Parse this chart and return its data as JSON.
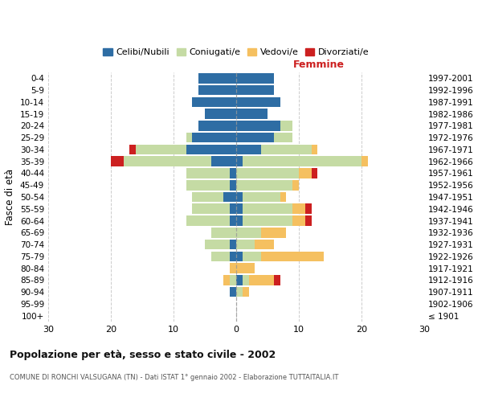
{
  "age_groups": [
    "100+",
    "95-99",
    "90-94",
    "85-89",
    "80-84",
    "75-79",
    "70-74",
    "65-69",
    "60-64",
    "55-59",
    "50-54",
    "45-49",
    "40-44",
    "35-39",
    "30-34",
    "25-29",
    "20-24",
    "15-19",
    "10-14",
    "5-9",
    "0-4"
  ],
  "birth_years": [
    "≤ 1901",
    "1902-1906",
    "1907-1911",
    "1912-1916",
    "1917-1921",
    "1922-1926",
    "1927-1931",
    "1932-1936",
    "1937-1941",
    "1942-1946",
    "1947-1951",
    "1952-1956",
    "1957-1961",
    "1962-1966",
    "1967-1971",
    "1972-1976",
    "1977-1981",
    "1982-1986",
    "1987-1991",
    "1992-1996",
    "1997-2001"
  ],
  "male": {
    "celibi": [
      0,
      0,
      1,
      0,
      0,
      1,
      1,
      0,
      1,
      1,
      2,
      1,
      1,
      4,
      8,
      7,
      6,
      5,
      7,
      6,
      6
    ],
    "coniugati": [
      0,
      0,
      0,
      1,
      0,
      3,
      4,
      4,
      7,
      6,
      5,
      7,
      7,
      14,
      8,
      1,
      0,
      0,
      0,
      0,
      0
    ],
    "vedovi": [
      0,
      0,
      0,
      1,
      1,
      0,
      0,
      0,
      0,
      0,
      0,
      0,
      0,
      0,
      0,
      0,
      0,
      0,
      0,
      0,
      0
    ],
    "divorziati": [
      0,
      0,
      0,
      0,
      0,
      0,
      0,
      0,
      0,
      0,
      0,
      0,
      0,
      2,
      1,
      0,
      0,
      0,
      0,
      0,
      0
    ]
  },
  "female": {
    "nubili": [
      0,
      0,
      0,
      1,
      0,
      1,
      0,
      0,
      1,
      1,
      1,
      0,
      0,
      1,
      4,
      6,
      7,
      5,
      7,
      6,
      6
    ],
    "coniugate": [
      0,
      0,
      1,
      1,
      0,
      3,
      3,
      4,
      8,
      8,
      6,
      9,
      10,
      19,
      8,
      3,
      2,
      0,
      0,
      0,
      0
    ],
    "vedove": [
      0,
      0,
      1,
      4,
      3,
      10,
      3,
      4,
      2,
      2,
      1,
      1,
      2,
      1,
      1,
      0,
      0,
      0,
      0,
      0,
      0
    ],
    "divorziate": [
      0,
      0,
      0,
      1,
      0,
      0,
      0,
      0,
      1,
      1,
      0,
      0,
      1,
      0,
      0,
      0,
      0,
      0,
      0,
      0,
      0
    ]
  },
  "colors": {
    "celibi": "#2e6da4",
    "coniugati": "#c5dba4",
    "vedovi": "#f5c060",
    "divorziati": "#cc2020"
  },
  "xlim": [
    -30,
    30
  ],
  "xticks": [
    -30,
    -20,
    -10,
    0,
    10,
    20,
    30
  ],
  "xticklabels": [
    "30",
    "20",
    "10",
    "0",
    "10",
    "20",
    "30"
  ],
  "title": "Popolazione per età, sesso e stato civile - 2002",
  "subtitle": "COMUNE DI RONCHI VALSUGANA (TN) - Dati ISTAT 1° gennaio 2002 - Elaborazione TUTTAITALIA.IT",
  "ylabel_left": "Fasce di età",
  "femmine_label": "Femmine",
  "legend_labels": [
    "Celibi/Nubili",
    "Coniugati/e",
    "Vedovi/e",
    "Divorziati/e"
  ],
  "background_color": "#ffffff",
  "grid_color": "#cccccc"
}
